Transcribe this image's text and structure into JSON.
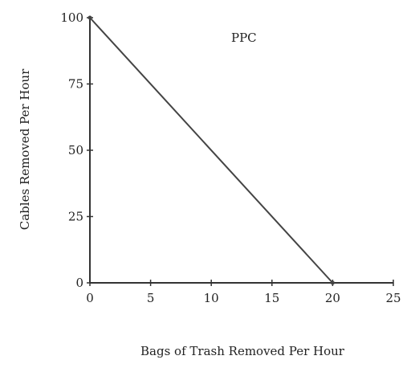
{
  "chart_data": {
    "type": "line",
    "title": "",
    "annotation": "PPC",
    "xlabel": "Bags of Trash Removed Per Hour",
    "ylabel": "Cables Removed Per Hour",
    "xlim": [
      0,
      25
    ],
    "ylim": [
      0,
      100
    ],
    "x_ticks": [
      0,
      5,
      10,
      15,
      20,
      25
    ],
    "y_ticks": [
      0,
      25,
      50,
      75,
      100
    ],
    "x_tick_labels": [
      "0",
      "5",
      "10",
      "15",
      "20",
      "25"
    ],
    "y_tick_labels": [
      "0",
      "25",
      "50",
      "75",
      "100"
    ],
    "grid": false,
    "legend": "none",
    "series": [
      {
        "points": [
          {
            "x": 0,
            "y": 100
          },
          {
            "x": 20,
            "y": 0
          }
        ],
        "color": "#444444"
      }
    ]
  }
}
